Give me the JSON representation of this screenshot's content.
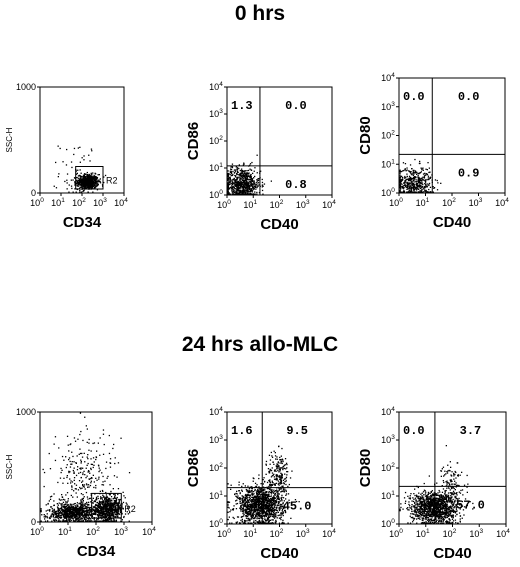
{
  "rows": [
    {
      "title": "0 hrs"
    },
    {
      "title": "24 hrs  allo-MLC"
    }
  ],
  "chart_data": [
    {
      "type": "scatter",
      "row": 0,
      "col": 0,
      "xlabel": "CD34",
      "ylabel": "SSC-H",
      "x_scale": "log",
      "xlim": [
        1,
        10000
      ],
      "x_ticks": [
        {
          "base": "10",
          "exp": "0"
        },
        {
          "base": "10",
          "exp": "1"
        },
        {
          "base": "10",
          "exp": "2"
        },
        {
          "base": "10",
          "exp": "3"
        },
        {
          "base": "10",
          "exp": "4"
        }
      ],
      "y_scale": "linear",
      "ylim": [
        0,
        1000
      ],
      "y_ticks": [
        "0",
        "1000"
      ],
      "gate": {
        "label": "R2",
        "x": [
          50,
          1000
        ],
        "y": [
          0,
          250
        ]
      },
      "clusters": [
        {
          "xc": 180,
          "sx": 0.25,
          "yc": 110,
          "sy": 35,
          "n": 600
        },
        {
          "xc": 60,
          "sx": 0.45,
          "yc": 200,
          "sy": 150,
          "n": 60
        }
      ]
    },
    {
      "type": "scatter",
      "row": 0,
      "col": 1,
      "xlabel": "CD40",
      "ylabel": "CD86",
      "x_scale": "log",
      "xlim": [
        1,
        10000
      ],
      "x_ticks": [
        {
          "base": "10",
          "exp": "0"
        },
        {
          "base": "10",
          "exp": "1"
        },
        {
          "base": "10",
          "exp": "2"
        },
        {
          "base": "10",
          "exp": "3"
        },
        {
          "base": "10",
          "exp": "4"
        }
      ],
      "y_scale": "log",
      "ylim": [
        1,
        10000
      ],
      "y_ticks": [
        {
          "base": "10",
          "exp": "0"
        },
        {
          "base": "10",
          "exp": "1"
        },
        {
          "base": "10",
          "exp": "2"
        },
        {
          "base": "10",
          "exp": "3"
        },
        {
          "base": "10",
          "exp": "4"
        }
      ],
      "quadrant_x": 18,
      "quadrant_y": 12,
      "quadrants": [
        {
          "pos": "top-left",
          "value": "1.3"
        },
        {
          "pos": "top-right",
          "value": "0.0"
        },
        {
          "pos": "bottom-right",
          "value": "0.8"
        }
      ],
      "clusters": [
        {
          "xc": 3.5,
          "sx": 0.35,
          "yc": 2.5,
          "sy": 0.32,
          "n": 750
        }
      ]
    },
    {
      "type": "scatter",
      "row": 0,
      "col": 2,
      "xlabel": "CD40",
      "ylabel": "CD80",
      "x_scale": "log",
      "xlim": [
        1,
        10000
      ],
      "x_ticks": [
        {
          "base": "10",
          "exp": "0"
        },
        {
          "base": "10",
          "exp": "1"
        },
        {
          "base": "10",
          "exp": "2"
        },
        {
          "base": "10",
          "exp": "3"
        },
        {
          "base": "10",
          "exp": "4"
        }
      ],
      "y_scale": "log",
      "ylim": [
        1,
        10000
      ],
      "y_ticks": [
        {
          "base": "10",
          "exp": "0"
        },
        {
          "base": "10",
          "exp": "1"
        },
        {
          "base": "10",
          "exp": "2"
        },
        {
          "base": "10",
          "exp": "3"
        },
        {
          "base": "10",
          "exp": "4"
        }
      ],
      "quadrant_x": 18,
      "quadrant_y": 22,
      "quadrants": [
        {
          "pos": "top-left",
          "value": "0.0"
        },
        {
          "pos": "top-right",
          "value": "0.0"
        },
        {
          "pos": "bottom-right",
          "value": "0.9"
        }
      ],
      "clusters": [
        {
          "xc": 3.5,
          "sx": 0.35,
          "yc": 2.4,
          "sy": 0.28,
          "n": 450
        }
      ]
    },
    {
      "type": "scatter",
      "row": 1,
      "col": 0,
      "xlabel": "CD34",
      "ylabel": "SSC-H",
      "x_scale": "log",
      "xlim": [
        1,
        10000
      ],
      "x_ticks": [
        {
          "base": "10",
          "exp": "0"
        },
        {
          "base": "10",
          "exp": "1"
        },
        {
          "base": "10",
          "exp": "2"
        },
        {
          "base": "10",
          "exp": "3"
        },
        {
          "base": "10",
          "exp": "4"
        }
      ],
      "y_scale": "linear",
      "ylim": [
        0,
        1000
      ],
      "y_ticks": [
        "0",
        "1000"
      ],
      "gate": {
        "label": "R2",
        "x": [
          70,
          800
        ],
        "y": [
          0,
          260
        ]
      },
      "clusters": [
        {
          "xc": 15,
          "sx": 0.45,
          "yc": 90,
          "sy": 45,
          "n": 800
        },
        {
          "xc": 250,
          "sx": 0.3,
          "yc": 120,
          "sy": 55,
          "n": 650
        },
        {
          "xc": 40,
          "sx": 0.6,
          "yc": 400,
          "sy": 230,
          "n": 300
        }
      ]
    },
    {
      "type": "scatter",
      "row": 1,
      "col": 1,
      "xlabel": "CD40",
      "ylabel": "CD86",
      "x_scale": "log",
      "xlim": [
        1,
        10000
      ],
      "x_ticks": [
        {
          "base": "10",
          "exp": "0"
        },
        {
          "base": "10",
          "exp": "1"
        },
        {
          "base": "10",
          "exp": "2"
        },
        {
          "base": "10",
          "exp": "3"
        },
        {
          "base": "10",
          "exp": "4"
        }
      ],
      "y_scale": "log",
      "ylim": [
        1,
        10000
      ],
      "y_ticks": [
        {
          "base": "10",
          "exp": "0"
        },
        {
          "base": "10",
          "exp": "1"
        },
        {
          "base": "10",
          "exp": "2"
        },
        {
          "base": "10",
          "exp": "3"
        },
        {
          "base": "10",
          "exp": "4"
        }
      ],
      "quadrant_x": 22,
      "quadrant_y": 20,
      "quadrants": [
        {
          "pos": "top-left",
          "value": "1.6"
        },
        {
          "pos": "top-right",
          "value": "9.5"
        },
        {
          "pos": "bottom-right",
          "value": "45.0"
        }
      ],
      "clusters": [
        {
          "xc": 18,
          "sx": 0.45,
          "yc": 5,
          "sy": 0.35,
          "n": 1300
        },
        {
          "xc": 90,
          "sx": 0.2,
          "yc": 60,
          "sy": 0.45,
          "n": 200
        }
      ]
    },
    {
      "type": "scatter",
      "row": 1,
      "col": 2,
      "xlabel": "CD40",
      "ylabel": "CD80",
      "x_scale": "log",
      "xlim": [
        1,
        10000
      ],
      "x_ticks": [
        {
          "base": "10",
          "exp": "0"
        },
        {
          "base": "10",
          "exp": "1"
        },
        {
          "base": "10",
          "exp": "2"
        },
        {
          "base": "10",
          "exp": "3"
        },
        {
          "base": "10",
          "exp": "4"
        }
      ],
      "y_scale": "log",
      "ylim": [
        1,
        10000
      ],
      "y_ticks": [
        {
          "base": "10",
          "exp": "0"
        },
        {
          "base": "10",
          "exp": "1"
        },
        {
          "base": "10",
          "exp": "2"
        },
        {
          "base": "10",
          "exp": "3"
        },
        {
          "base": "10",
          "exp": "4"
        }
      ],
      "quadrant_x": 22,
      "quadrant_y": 22,
      "quadrants": [
        {
          "pos": "top-left",
          "value": "0.0"
        },
        {
          "pos": "top-right",
          "value": "3.7"
        },
        {
          "pos": "bottom-right",
          "value": "57.0"
        }
      ],
      "clusters": [
        {
          "xc": 20,
          "sx": 0.45,
          "yc": 4,
          "sy": 0.3,
          "n": 1200
        },
        {
          "xc": 90,
          "sx": 0.18,
          "yc": 30,
          "sy": 0.4,
          "n": 120
        }
      ]
    }
  ]
}
